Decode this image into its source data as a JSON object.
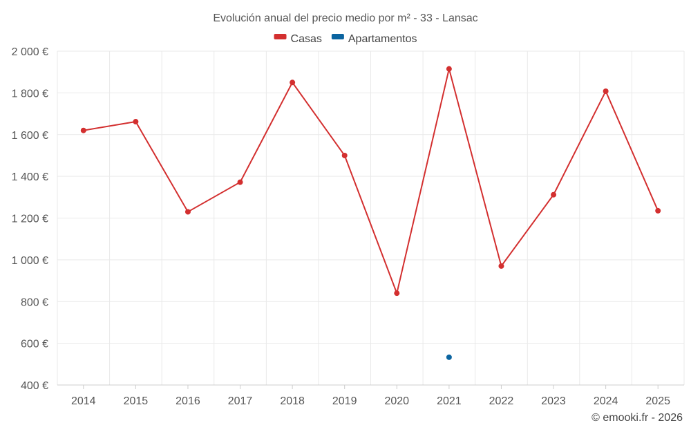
{
  "chart_data": {
    "type": "line",
    "title": "Evolución anual del precio medio por m² - 33 - Lansac",
    "categories": [
      "2014",
      "2015",
      "2016",
      "2017",
      "2018",
      "2019",
      "2020",
      "2021",
      "2022",
      "2023",
      "2024",
      "2025"
    ],
    "series": [
      {
        "name": "Casas",
        "color": "#d32f2f",
        "values": [
          1620,
          1662,
          1230,
          1372,
          1850,
          1500,
          840,
          1915,
          970,
          1312,
          1808,
          1235
        ]
      },
      {
        "name": "Apartamentos",
        "color": "#0b64a0",
        "values": [
          null,
          null,
          null,
          null,
          null,
          null,
          null,
          533,
          null,
          null,
          null,
          null
        ]
      }
    ],
    "ylim": [
      400,
      2000
    ],
    "yticks": [
      400,
      600,
      800,
      1000,
      1200,
      1400,
      1600,
      1800,
      2000
    ],
    "ytick_labels": [
      "400 €",
      "600 €",
      "800 €",
      "1 000 €",
      "1 200 €",
      "1 400 €",
      "1 600 €",
      "1 800 €",
      "2 000 €"
    ],
    "xlabel": "",
    "ylabel": "",
    "legend_position": "top-center",
    "grid": true
  },
  "credit": "© emooki.fr - 2026"
}
